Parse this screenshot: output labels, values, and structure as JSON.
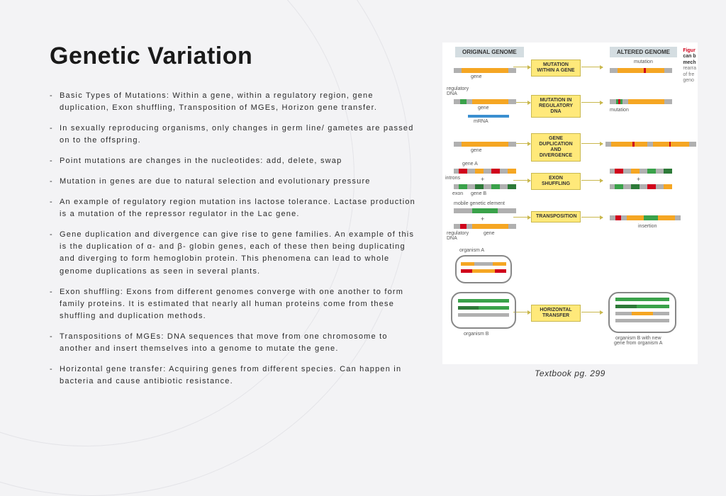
{
  "title": "Genetic Variation",
  "bullets": [
    "Basic Types of Mutations: Within a gene, within a regulatory region, gene duplication, Exon shuffling, Transposition of MGEs, Horizon gene transfer.",
    "In sexually reproducing organisms, only changes in germ line/ gametes are passed on to the offspring.",
    "Point mutations are changes in the nucleotides: add, delete, swap",
    "Mutation in genes are due to natural selection and evolutionary pressure",
    "An example of regulatory region mutation ins lactose tolerance. Lactase production is a mutation of the repressor regulator in the Lac gene.",
    "Gene duplication and divergence can give rise to gene families. An example of this is the duplication of α- and β- globin genes, each of these then being duplicating and diverging to form hemoglobin protein. This phenomena can lead to whole genome duplications as seen in several plants.",
    "Exon shuffling: Exons from different genomes converge with one another to form family proteins. It is estimated that nearly all human proteins come from these shuffling and duplication methods.",
    "Transpositions of MGEs: DNA sequences that move from one chromosome to another and insert themselves into a genome to mutate the gene.",
    "Horizontal gene transfer: Acquiring genes from different species. Can happen in bacteria and cause antibiotic resistance."
  ],
  "caption": "Textbook pg. 299",
  "diagram": {
    "col_left": "ORIGINAL GENOME",
    "col_right": "ALTERED GENOME",
    "side_text": [
      "Figur",
      "can b",
      "mech",
      "rearra",
      "of fre",
      "geno"
    ],
    "rows": [
      {
        "label": "MUTATION\nWITHIN A GENE",
        "left_note": "gene",
        "right_note": "mutation"
      },
      {
        "label": "MUTATION IN\nREGULATORY DNA",
        "left_note_top": "regulatory\nDNA",
        "left_note_bot": "mRNA",
        "right_note": "mutation"
      },
      {
        "label": "GENE\nDUPLICATION\nAND DIVERGENCE",
        "left_note": "gene"
      },
      {
        "label": "EXON\nSHUFFLING",
        "left_note_a": "gene A",
        "left_note_b": "gene B",
        "left_note_c": "introns",
        "left_note_d": "exon"
      },
      {
        "label": "TRANSPOSITION",
        "left_note": "mobile genetic element",
        "right_note": "insertion"
      },
      {
        "label": "HORIZONTAL\nTRANSFER",
        "left_note_a": "organism A",
        "left_note_b": "organism B",
        "right_note": "organism B with new\ngene from organism A"
      }
    ],
    "colors": {
      "orange": "#f5a623",
      "gray": "#b0b0b0",
      "dgray": "#808080",
      "red": "#d0021b",
      "green": "#3aa24a",
      "dgreen": "#2d7a38",
      "blue": "#3a8fd0",
      "yellow": "#ffe97a"
    }
  }
}
